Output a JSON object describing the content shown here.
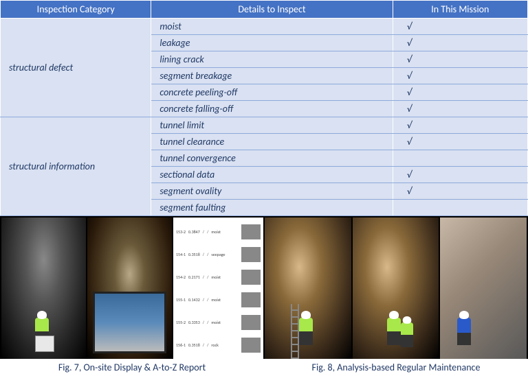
{
  "table": {
    "header_bg": "#4472c4",
    "header_fg": "#ffffff",
    "cell_bg": "#d9e1f2",
    "cell_fg": "#203864",
    "border_color": "#8ea9db",
    "columns": [
      "Inspection Category",
      "Details to Inspect",
      "In This Mission"
    ],
    "col_widths_pct": [
      28.6,
      45.8,
      25.6
    ],
    "font_style": "italic",
    "check_mark": "√",
    "categories": [
      {
        "name": "structural defect",
        "rows": [
          {
            "detail": "moist",
            "checked": true
          },
          {
            "detail": "leakage",
            "checked": true
          },
          {
            "detail": "lining crack",
            "checked": true
          },
          {
            "detail": "segment breakage",
            "checked": true
          },
          {
            "detail": "concrete peeling-off",
            "checked": true
          },
          {
            "detail": "concrete falling-off",
            "checked": true
          }
        ]
      },
      {
        "name": "structural information",
        "rows": [
          {
            "detail": "tunnel limit",
            "checked": true
          },
          {
            "detail": "tunnel clearance",
            "checked": true
          },
          {
            "detail": "tunnel convergence",
            "checked": false
          },
          {
            "detail": "sectional data",
            "checked": true
          },
          {
            "detail": "segment ovality",
            "checked": true
          },
          {
            "detail": "segment faulting",
            "checked": false
          }
        ]
      }
    ]
  },
  "figures": {
    "caption_color": "#203864",
    "fig7": {
      "caption": "Fig. 7, On-site Display & A-to-Z Report",
      "report_rows": [
        {
          "id": "153-2",
          "val": "0.3847",
          "c1": "/",
          "c2": "/",
          "type": "moist"
        },
        {
          "id": "154-1",
          "val": "0.3518",
          "c1": "/",
          "c2": "/",
          "type": "seepage"
        },
        {
          "id": "154-2",
          "val": "0.2171",
          "c1": "/",
          "c2": "/",
          "type": "moist"
        },
        {
          "id": "155-1",
          "val": "0.1432",
          "c1": "/",
          "c2": "/",
          "type": "moist"
        },
        {
          "id": "155-2",
          "val": "0.3353",
          "c1": "/",
          "c2": "/",
          "type": "moist"
        },
        {
          "id": "156-1",
          "val": "0.3518",
          "c1": "/",
          "c2": "/",
          "type": "rock"
        }
      ]
    },
    "fig8": {
      "caption": "Fig. 8, Analysis-based Regular Maintenance"
    }
  }
}
